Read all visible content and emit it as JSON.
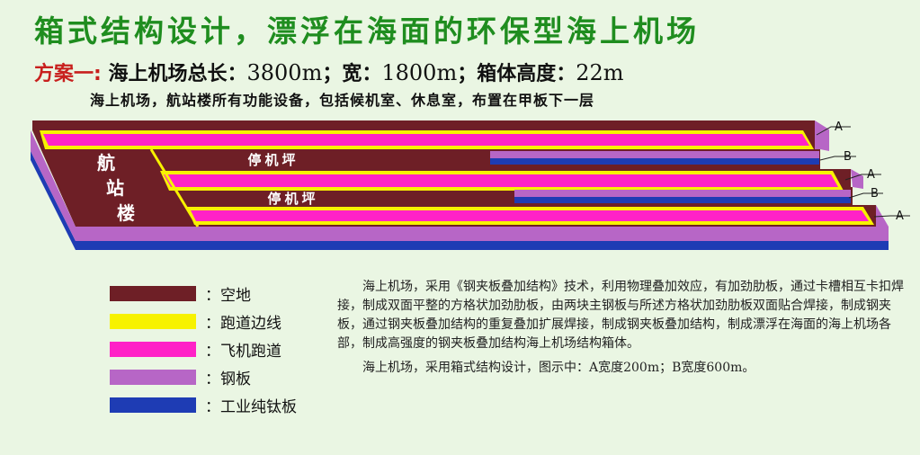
{
  "header": {
    "title": "箱式结构设计，漂浮在海面的环保型海上机场",
    "plan": "方案一:",
    "spec_pre": "海上机场总长：",
    "length": "3800m",
    "spec_mid1": "；宽：",
    "width": "1800m",
    "spec_mid2": "；箱体高度：",
    "height": "22m",
    "note": "海上机场，航站楼所有功能设备，包括候机室、休息室，布置在甲板下一层"
  },
  "diagram": {
    "terminal_chars": [
      "航",
      "站",
      "楼"
    ],
    "apron_labels": [
      "停机坪",
      "停机坪"
    ],
    "width_tags": [
      "A",
      "B",
      "A",
      "B",
      "A"
    ],
    "colors": {
      "ground": "#6e1f26",
      "edge": "#f7f200",
      "runway": "#ff22c7",
      "steel": "#b766c6",
      "titanium": "#1e3cb4"
    }
  },
  "legend": [
    {
      "color": "#6e1f26",
      "label": "：空地"
    },
    {
      "color": "#f7f200",
      "label": "：跑道边线"
    },
    {
      "color": "#ff22c7",
      "label": "：飞机跑道"
    },
    {
      "color": "#b766c6",
      "label": "：钢板"
    },
    {
      "color": "#1e3cb4",
      "label": "：工业纯钛板"
    }
  ],
  "description": {
    "para1": "海上机场，采用《钢夹板叠加结构》技术，利用物理叠加效应，有加劲肋板，通过卡槽相互卡扣焊接，制成双面平整的方格状加劲肋板，由两块主钢板与所述方格状加劲肋板双面贴合焊接，制成钢夹板，通过钢夹板叠加结构的重复叠加扩展焊接，制成钢夹板叠加结构，制成漂浮在海面的海上机场各部，制成高强度的钢夹板叠加结构海上机场结构箱体。",
    "para2": "海上机场，采用箱式结构设计，图示中：A宽度200m；B宽度600m。"
  }
}
